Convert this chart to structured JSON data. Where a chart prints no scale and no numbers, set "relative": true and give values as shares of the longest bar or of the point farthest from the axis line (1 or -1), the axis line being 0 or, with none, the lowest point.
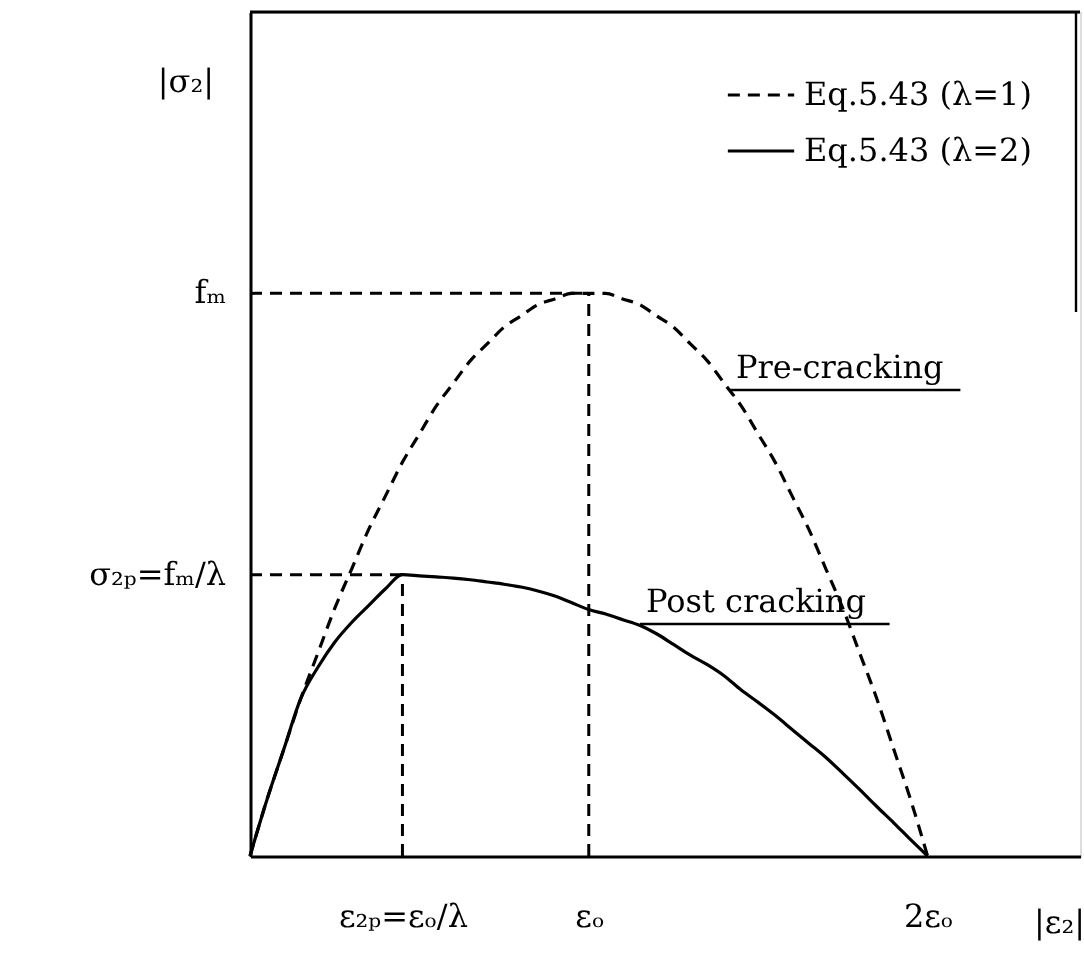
{
  "chart_data": {
    "type": "line",
    "relative": true,
    "xlabel": "|ε₂|",
    "categories": [
      null,
      null,
      null,
      null,
      null,
      null,
      null,
      null,
      null,
      "ε₂ₚ=εₒ/λ",
      null,
      null,
      null,
      null,
      null,
      null,
      null,
      null,
      null,
      null,
      "εₒ",
      null,
      null,
      null,
      null,
      null,
      null,
      null,
      null,
      null,
      null,
      null,
      null,
      null,
      null,
      null,
      null,
      null,
      null,
      null,
      "2εₒ",
      null,
      null,
      null,
      null,
      null,
      null,
      null,
      null,
      null
    ],
    "legend": "top right",
    "series": [
      {
        "name": "Eq.5.43 (λ=1)",
        "color": "#000000",
        "line_style": "dashed",
        "values": [
          0,
          0.1,
          0.19,
          0.28,
          0.36,
          0.44,
          0.51,
          0.58,
          0.64,
          0.7,
          0.75,
          0.8,
          0.84,
          0.88,
          0.91,
          0.94,
          0.96,
          0.98,
          0.99,
          1.0,
          1,
          1.0,
          0.99,
          0.98,
          0.96,
          0.94,
          0.91,
          0.88,
          0.84,
          0.8,
          0.75,
          0.7,
          0.64,
          0.58,
          0.51,
          0.44,
          0.36,
          0.28,
          0.19,
          0.1,
          0,
          null,
          null,
          null,
          null,
          null,
          null,
          null,
          null,
          null
        ]
      },
      {
        "name": "Eq.5.43 (λ=2)",
        "color": "#000000",
        "line_style": "solid",
        "values": [
          0,
          0.1,
          0.19,
          0.28,
          0.335,
          0.38,
          0.415,
          0.445,
          0.475,
          0.5,
          0.498,
          0.496,
          0.494,
          0.491,
          0.487,
          0.483,
          0.478,
          0.471,
          0.462,
          0.45,
          0.438,
          0.43,
          0.42,
          0.41,
          0.395,
          0.376,
          0.357,
          0.34,
          0.32,
          0.295,
          0.273,
          0.25,
          0.225,
          0.2,
          0.175,
          0.147,
          0.118,
          0.088,
          0.059,
          0.029,
          0,
          null,
          null,
          null,
          null,
          null,
          null,
          null,
          null,
          null
        ]
      }
    ],
    "ref_lines": [
      {
        "axis": "y",
        "value": 1,
        "label": "fₘ",
        "line_style": "dashed",
        "color": "#000000"
      },
      {
        "axis": "y",
        "value": 0.5,
        "label": "σ₂ₚ=fₘ/λ",
        "line_style": "dashed",
        "color": "#000000"
      },
      {
        "axis": "x",
        "value": "εₒ",
        "line_style": "dashed",
        "color": "#000000"
      },
      {
        "axis": "x",
        "value": "ε₂ₚ=εₒ/λ",
        "line_style": "dashed",
        "color": "#000000"
      }
    ],
    "annotations": [
      "|σ₂|",
      "Pre-cracking",
      "Post cracking"
    ]
  }
}
